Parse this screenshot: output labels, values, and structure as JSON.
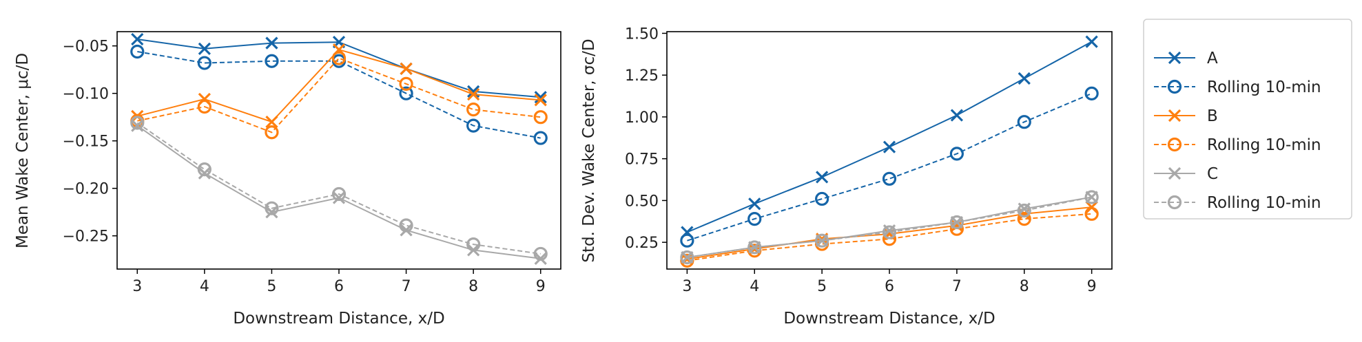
{
  "colors": {
    "A": "#1565a8",
    "B": "#ff7f0e",
    "C": "#a8a8a8"
  },
  "legend": {
    "placement": "outside-right",
    "entries": [
      {
        "label": "A",
        "color": "#1565a8",
        "marker": "x",
        "dash": false
      },
      {
        "label": "Rolling 10-min",
        "color": "#1565a8",
        "marker": "o",
        "dash": true
      },
      {
        "label": "B",
        "color": "#ff7f0e",
        "marker": "x",
        "dash": false
      },
      {
        "label": "Rolling 10-min",
        "color": "#ff7f0e",
        "marker": "o",
        "dash": true
      },
      {
        "label": "C",
        "color": "#a8a8a8",
        "marker": "x",
        "dash": false
      },
      {
        "label": "Rolling 10-min",
        "color": "#a8a8a8",
        "marker": "o",
        "dash": true
      }
    ]
  },
  "chart_data": [
    {
      "type": "line",
      "xlabel": "Downstream Distance, x/D",
      "ylabel": "Mean Wake Center, μc/D",
      "x": [
        3,
        4,
        5,
        6,
        7,
        8,
        9
      ],
      "xlim": [
        2.7,
        9.3
      ],
      "ylim": [
        -0.285,
        -0.035
      ],
      "xticks": [
        3,
        4,
        5,
        6,
        7,
        8,
        9
      ],
      "yticks": [
        -0.25,
        -0.2,
        -0.15,
        -0.1,
        -0.05
      ],
      "ytick_labels": [
        "−0.25",
        "−0.20",
        "−0.15",
        "−0.10",
        "−0.05"
      ],
      "grid": false,
      "series": [
        {
          "name": "A",
          "color": "#1565a8",
          "marker": "x",
          "dash": false,
          "values": [
            -0.043,
            -0.053,
            -0.047,
            -0.046,
            -0.074,
            -0.098,
            -0.104
          ]
        },
        {
          "name": "Rolling 10-min",
          "color": "#1565a8",
          "marker": "o",
          "dash": true,
          "values": [
            -0.056,
            -0.068,
            -0.066,
            -0.066,
            -0.1,
            -0.134,
            -0.147
          ]
        },
        {
          "name": "B",
          "color": "#ff7f0e",
          "marker": "x",
          "dash": false,
          "values": [
            -0.124,
            -0.106,
            -0.13,
            -0.054,
            -0.074,
            -0.101,
            -0.107
          ]
        },
        {
          "name": "Rolling 10-min",
          "color": "#ff7f0e",
          "marker": "o",
          "dash": true,
          "values": [
            -0.129,
            -0.114,
            -0.141,
            -0.063,
            -0.09,
            -0.117,
            -0.125
          ]
        },
        {
          "name": "C",
          "color": "#a8a8a8",
          "marker": "x",
          "dash": false,
          "values": [
            -0.134,
            -0.184,
            -0.225,
            -0.21,
            -0.244,
            -0.265,
            -0.274
          ]
        },
        {
          "name": "Rolling 10-min",
          "color": "#a8a8a8",
          "marker": "o",
          "dash": true,
          "values": [
            -0.131,
            -0.18,
            -0.221,
            -0.206,
            -0.239,
            -0.259,
            -0.269
          ]
        }
      ]
    },
    {
      "type": "line",
      "xlabel": "Downstream Distance, x/D",
      "ylabel": "Std. Dev. Wake Center, σc/D",
      "x": [
        3,
        4,
        5,
        6,
        7,
        8,
        9
      ],
      "xlim": [
        2.7,
        9.3
      ],
      "ylim": [
        0.09,
        1.51
      ],
      "xticks": [
        3,
        4,
        5,
        6,
        7,
        8,
        9
      ],
      "yticks": [
        0.25,
        0.5,
        0.75,
        1.0,
        1.25,
        1.5
      ],
      "ytick_labels": [
        "0.25",
        "0.50",
        "0.75",
        "1.00",
        "1.25",
        "1.50"
      ],
      "grid": false,
      "series": [
        {
          "name": "A",
          "color": "#1565a8",
          "marker": "x",
          "dash": false,
          "values": [
            0.31,
            0.48,
            0.64,
            0.82,
            1.01,
            1.23,
            1.45
          ]
        },
        {
          "name": "Rolling 10-min",
          "color": "#1565a8",
          "marker": "o",
          "dash": true,
          "values": [
            0.26,
            0.39,
            0.51,
            0.63,
            0.78,
            0.97,
            1.14
          ]
        },
        {
          "name": "B",
          "color": "#ff7f0e",
          "marker": "x",
          "dash": false,
          "values": [
            0.15,
            0.21,
            0.27,
            0.3,
            0.35,
            0.42,
            0.46
          ]
        },
        {
          "name": "Rolling 10-min",
          "color": "#ff7f0e",
          "marker": "o",
          "dash": true,
          "values": [
            0.14,
            0.2,
            0.24,
            0.27,
            0.33,
            0.39,
            0.42
          ]
        },
        {
          "name": "C",
          "color": "#a8a8a8",
          "marker": "x",
          "dash": false,
          "values": [
            0.16,
            0.22,
            0.26,
            0.32,
            0.37,
            0.45,
            0.52
          ]
        },
        {
          "name": "Rolling 10-min",
          "color": "#a8a8a8",
          "marker": "o",
          "dash": true,
          "values": [
            0.16,
            0.22,
            0.26,
            0.31,
            0.37,
            0.44,
            0.52
          ]
        }
      ]
    }
  ]
}
